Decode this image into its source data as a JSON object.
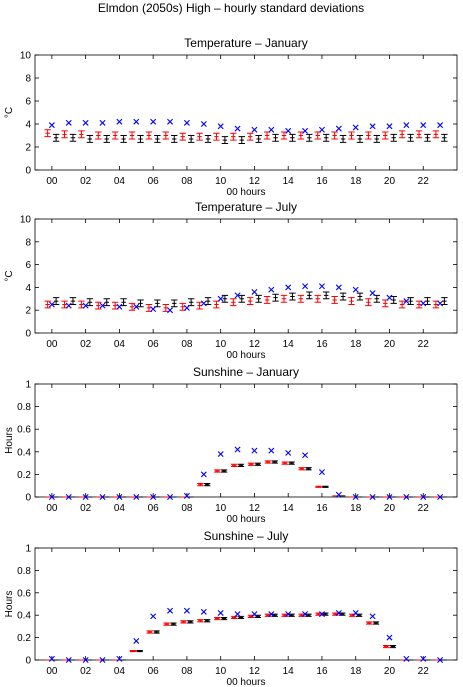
{
  "figure_title": "Elmdon (2050s) High – hourly standard deviations",
  "colors": {
    "black_series": "#000000",
    "red_series": "#ff0000",
    "blue_series": "#0000ff",
    "axes": "#000000"
  },
  "chart_data": [
    {
      "type": "scatter",
      "title": "Temperature – January",
      "xlabel": "00 hours",
      "ylabel": "°C",
      "xlim": [
        -1,
        24
      ],
      "ylim": [
        0,
        10
      ],
      "xticks": [
        0,
        2,
        4,
        6,
        8,
        10,
        12,
        14,
        16,
        18,
        20,
        22
      ],
      "xtick_labels": [
        "00",
        "02",
        "04",
        "06",
        "08",
        "10",
        "12",
        "14",
        "16",
        "18",
        "20",
        "22"
      ],
      "yticks": [
        0,
        2,
        4,
        6,
        8,
        10
      ],
      "ytick_labels": [
        "0",
        "2",
        "4",
        "6",
        "8",
        "10"
      ],
      "x": [
        0,
        1,
        2,
        3,
        4,
        5,
        6,
        7,
        8,
        9,
        10,
        11,
        12,
        13,
        14,
        15,
        16,
        17,
        18,
        19,
        20,
        21,
        22,
        23
      ],
      "series": [
        {
          "marker": "errorbar",
          "color": "#000000",
          "offset": 0.25,
          "values": [
            2.8,
            2.8,
            2.7,
            2.7,
            2.7,
            2.7,
            2.7,
            2.7,
            2.7,
            2.7,
            2.6,
            2.6,
            2.7,
            2.8,
            2.8,
            2.8,
            2.8,
            2.7,
            2.7,
            2.7,
            2.8,
            2.8,
            2.8,
            2.8
          ],
          "err": [
            0.3,
            0.3,
            0.3,
            0.3,
            0.3,
            0.3,
            0.3,
            0.3,
            0.3,
            0.3,
            0.3,
            0.3,
            0.3,
            0.3,
            0.3,
            0.3,
            0.3,
            0.3,
            0.3,
            0.3,
            0.3,
            0.3,
            0.3,
            0.3
          ]
        },
        {
          "marker": "errorbar",
          "color": "#ff0000",
          "offset": -0.25,
          "values": [
            3.2,
            3.1,
            3.1,
            3.0,
            3.0,
            3.0,
            3.0,
            3.0,
            2.9,
            2.9,
            2.9,
            2.9,
            2.9,
            3.0,
            3.0,
            3.0,
            3.0,
            3.0,
            3.0,
            3.0,
            3.0,
            3.1,
            3.1,
            3.1
          ],
          "err": [
            0.3,
            0.3,
            0.3,
            0.3,
            0.3,
            0.3,
            0.3,
            0.3,
            0.3,
            0.3,
            0.3,
            0.3,
            0.3,
            0.3,
            0.3,
            0.3,
            0.3,
            0.3,
            0.3,
            0.3,
            0.3,
            0.3,
            0.3,
            0.3
          ]
        },
        {
          "marker": "x",
          "color": "#0000ff",
          "offset": 0,
          "values": [
            3.9,
            4.1,
            4.1,
            4.1,
            4.2,
            4.2,
            4.2,
            4.2,
            4.1,
            4.0,
            3.8,
            3.6,
            3.5,
            3.5,
            3.4,
            3.4,
            3.5,
            3.6,
            3.7,
            3.8,
            3.8,
            3.9,
            3.9,
            3.9
          ]
        }
      ]
    },
    {
      "type": "scatter",
      "title": "Temperature – July",
      "xlabel": "00 hours",
      "ylabel": "°C",
      "xlim": [
        -1,
        24
      ],
      "ylim": [
        0,
        10
      ],
      "xticks": [
        0,
        2,
        4,
        6,
        8,
        10,
        12,
        14,
        16,
        18,
        20,
        22
      ],
      "xtick_labels": [
        "00",
        "02",
        "04",
        "06",
        "08",
        "10",
        "12",
        "14",
        "16",
        "18",
        "20",
        "22"
      ],
      "yticks": [
        0,
        2,
        4,
        6,
        8,
        10
      ],
      "ytick_labels": [
        "0",
        "2",
        "4",
        "6",
        "8",
        "10"
      ],
      "x": [
        0,
        1,
        2,
        3,
        4,
        5,
        6,
        7,
        8,
        9,
        10,
        11,
        12,
        13,
        14,
        15,
        16,
        17,
        18,
        19,
        20,
        21,
        22,
        23
      ],
      "series": [
        {
          "marker": "errorbar",
          "color": "#000000",
          "offset": 0.25,
          "values": [
            2.8,
            2.8,
            2.7,
            2.7,
            2.7,
            2.6,
            2.6,
            2.6,
            2.7,
            2.8,
            3.0,
            3.0,
            3.0,
            3.1,
            3.2,
            3.3,
            3.3,
            3.2,
            3.2,
            3.0,
            2.9,
            2.8,
            2.8,
            2.8
          ],
          "err": [
            0.3,
            0.3,
            0.3,
            0.3,
            0.3,
            0.3,
            0.3,
            0.3,
            0.3,
            0.3,
            0.3,
            0.3,
            0.3,
            0.3,
            0.3,
            0.3,
            0.3,
            0.3,
            0.3,
            0.3,
            0.3,
            0.3,
            0.3,
            0.3
          ]
        },
        {
          "marker": "errorbar",
          "color": "#ff0000",
          "offset": -0.25,
          "values": [
            2.5,
            2.5,
            2.5,
            2.4,
            2.4,
            2.3,
            2.2,
            2.2,
            2.3,
            2.4,
            2.5,
            2.7,
            2.8,
            2.9,
            3.0,
            3.0,
            3.0,
            2.9,
            2.8,
            2.7,
            2.6,
            2.5,
            2.5,
            2.5
          ],
          "err": [
            0.3,
            0.3,
            0.3,
            0.3,
            0.3,
            0.3,
            0.3,
            0.3,
            0.3,
            0.3,
            0.3,
            0.3,
            0.3,
            0.3,
            0.3,
            0.3,
            0.3,
            0.3,
            0.3,
            0.3,
            0.3,
            0.3,
            0.3,
            0.3
          ]
        },
        {
          "marker": "x",
          "color": "#0000ff",
          "offset": 0,
          "values": [
            2.5,
            2.4,
            2.4,
            2.4,
            2.3,
            2.3,
            2.1,
            2.0,
            2.2,
            2.6,
            3.0,
            3.3,
            3.6,
            3.8,
            4.0,
            4.1,
            4.1,
            4.0,
            3.8,
            3.5,
            3.1,
            2.8,
            2.6,
            2.6
          ]
        }
      ]
    },
    {
      "type": "scatter",
      "title": "Sunshine – January",
      "xlabel": "00 hours",
      "ylabel": "Hours",
      "xlim": [
        -1,
        24
      ],
      "ylim": [
        0,
        1
      ],
      "xticks": [
        0,
        2,
        4,
        6,
        8,
        10,
        12,
        14,
        16,
        18,
        20,
        22
      ],
      "xtick_labels": [
        "00",
        "02",
        "04",
        "06",
        "08",
        "10",
        "12",
        "14",
        "16",
        "18",
        "20",
        "22"
      ],
      "yticks": [
        0,
        0.2,
        0.4,
        0.6,
        0.8,
        1
      ],
      "ytick_labels": [
        "0",
        "0.2",
        "0.4",
        "0.6",
        "0.8",
        "1"
      ],
      "x": [
        0,
        1,
        2,
        3,
        4,
        5,
        6,
        7,
        8,
        9,
        10,
        11,
        12,
        13,
        14,
        15,
        16,
        17,
        18,
        19,
        20,
        21,
        22,
        23
      ],
      "series": [
        {
          "marker": "errorbar",
          "color": "#000000",
          "offset": 0.2,
          "values": [
            0,
            0,
            0,
            0,
            0,
            0,
            0,
            0,
            0,
            0.11,
            0.23,
            0.28,
            0.29,
            0.31,
            0.3,
            0.25,
            0.09,
            0.01,
            0,
            0,
            0,
            0,
            0,
            0
          ],
          "err": [
            0,
            0,
            0,
            0,
            0,
            0,
            0,
            0,
            0,
            0.01,
            0.01,
            0.01,
            0.01,
            0.01,
            0.01,
            0.01,
            0.005,
            0,
            0,
            0,
            0,
            0,
            0,
            0
          ]
        },
        {
          "marker": "errorbar",
          "color": "#ff0000",
          "offset": -0.2,
          "values": [
            0,
            0,
            0,
            0,
            0,
            0,
            0,
            0,
            0,
            0.11,
            0.23,
            0.28,
            0.29,
            0.31,
            0.3,
            0.25,
            0.09,
            0.01,
            0,
            0,
            0,
            0,
            0,
            0
          ],
          "err": [
            0,
            0,
            0,
            0,
            0,
            0,
            0,
            0,
            0,
            0.01,
            0.01,
            0.01,
            0.01,
            0.01,
            0.01,
            0.01,
            0.005,
            0,
            0,
            0,
            0,
            0,
            0,
            0
          ]
        },
        {
          "marker": "x",
          "color": "#0000ff",
          "offset": 0,
          "values": [
            0,
            0,
            0,
            0,
            0,
            0,
            0,
            0,
            0.01,
            0.2,
            0.38,
            0.42,
            0.41,
            0.41,
            0.39,
            0.37,
            0.22,
            0.02,
            0,
            0,
            0,
            0,
            0,
            0
          ]
        }
      ]
    },
    {
      "type": "scatter",
      "title": "Sunshine – July",
      "xlabel": "00 hours",
      "ylabel": "Hours",
      "xlim": [
        -1,
        24
      ],
      "ylim": [
        0,
        1
      ],
      "xticks": [
        0,
        2,
        4,
        6,
        8,
        10,
        12,
        14,
        16,
        18,
        20,
        22
      ],
      "xtick_labels": [
        "00",
        "02",
        "04",
        "06",
        "08",
        "10",
        "12",
        "14",
        "16",
        "18",
        "20",
        "22"
      ],
      "yticks": [
        0,
        0.2,
        0.4,
        0.6,
        0.8,
        1
      ],
      "ytick_labels": [
        "0",
        "0.2",
        "0.4",
        "0.6",
        "0.8",
        "1"
      ],
      "x": [
        0,
        1,
        2,
        3,
        4,
        5,
        6,
        7,
        8,
        9,
        10,
        11,
        12,
        13,
        14,
        15,
        16,
        17,
        18,
        19,
        20,
        21,
        22,
        23
      ],
      "series": [
        {
          "marker": "errorbar",
          "color": "#000000",
          "offset": 0.2,
          "values": [
            0,
            0,
            0,
            0,
            0,
            0.08,
            0.25,
            0.32,
            0.34,
            0.35,
            0.37,
            0.38,
            0.39,
            0.4,
            0.4,
            0.4,
            0.41,
            0.41,
            0.4,
            0.33,
            0.12,
            0,
            0,
            0
          ],
          "err": [
            0,
            0,
            0,
            0,
            0,
            0.005,
            0.01,
            0.01,
            0.01,
            0.01,
            0.01,
            0.01,
            0.01,
            0.01,
            0.01,
            0.01,
            0.01,
            0.01,
            0.01,
            0.01,
            0.01,
            0,
            0,
            0
          ]
        },
        {
          "marker": "errorbar",
          "color": "#ff0000",
          "offset": -0.2,
          "values": [
            0,
            0,
            0,
            0,
            0,
            0.08,
            0.25,
            0.32,
            0.34,
            0.35,
            0.37,
            0.38,
            0.39,
            0.4,
            0.4,
            0.4,
            0.41,
            0.41,
            0.4,
            0.33,
            0.12,
            0,
            0,
            0
          ],
          "err": [
            0,
            0,
            0,
            0,
            0,
            0.005,
            0.01,
            0.01,
            0.01,
            0.01,
            0.01,
            0.01,
            0.01,
            0.01,
            0.01,
            0.01,
            0.01,
            0.01,
            0.01,
            0.01,
            0.01,
            0,
            0,
            0
          ]
        },
        {
          "marker": "x",
          "color": "#0000ff",
          "offset": 0,
          "values": [
            0.01,
            0,
            0,
            0,
            0.01,
            0.17,
            0.39,
            0.44,
            0.44,
            0.43,
            0.42,
            0.41,
            0.41,
            0.41,
            0.41,
            0.41,
            0.41,
            0.42,
            0.42,
            0.39,
            0.2,
            0.01,
            0.01,
            0
          ]
        }
      ]
    }
  ]
}
